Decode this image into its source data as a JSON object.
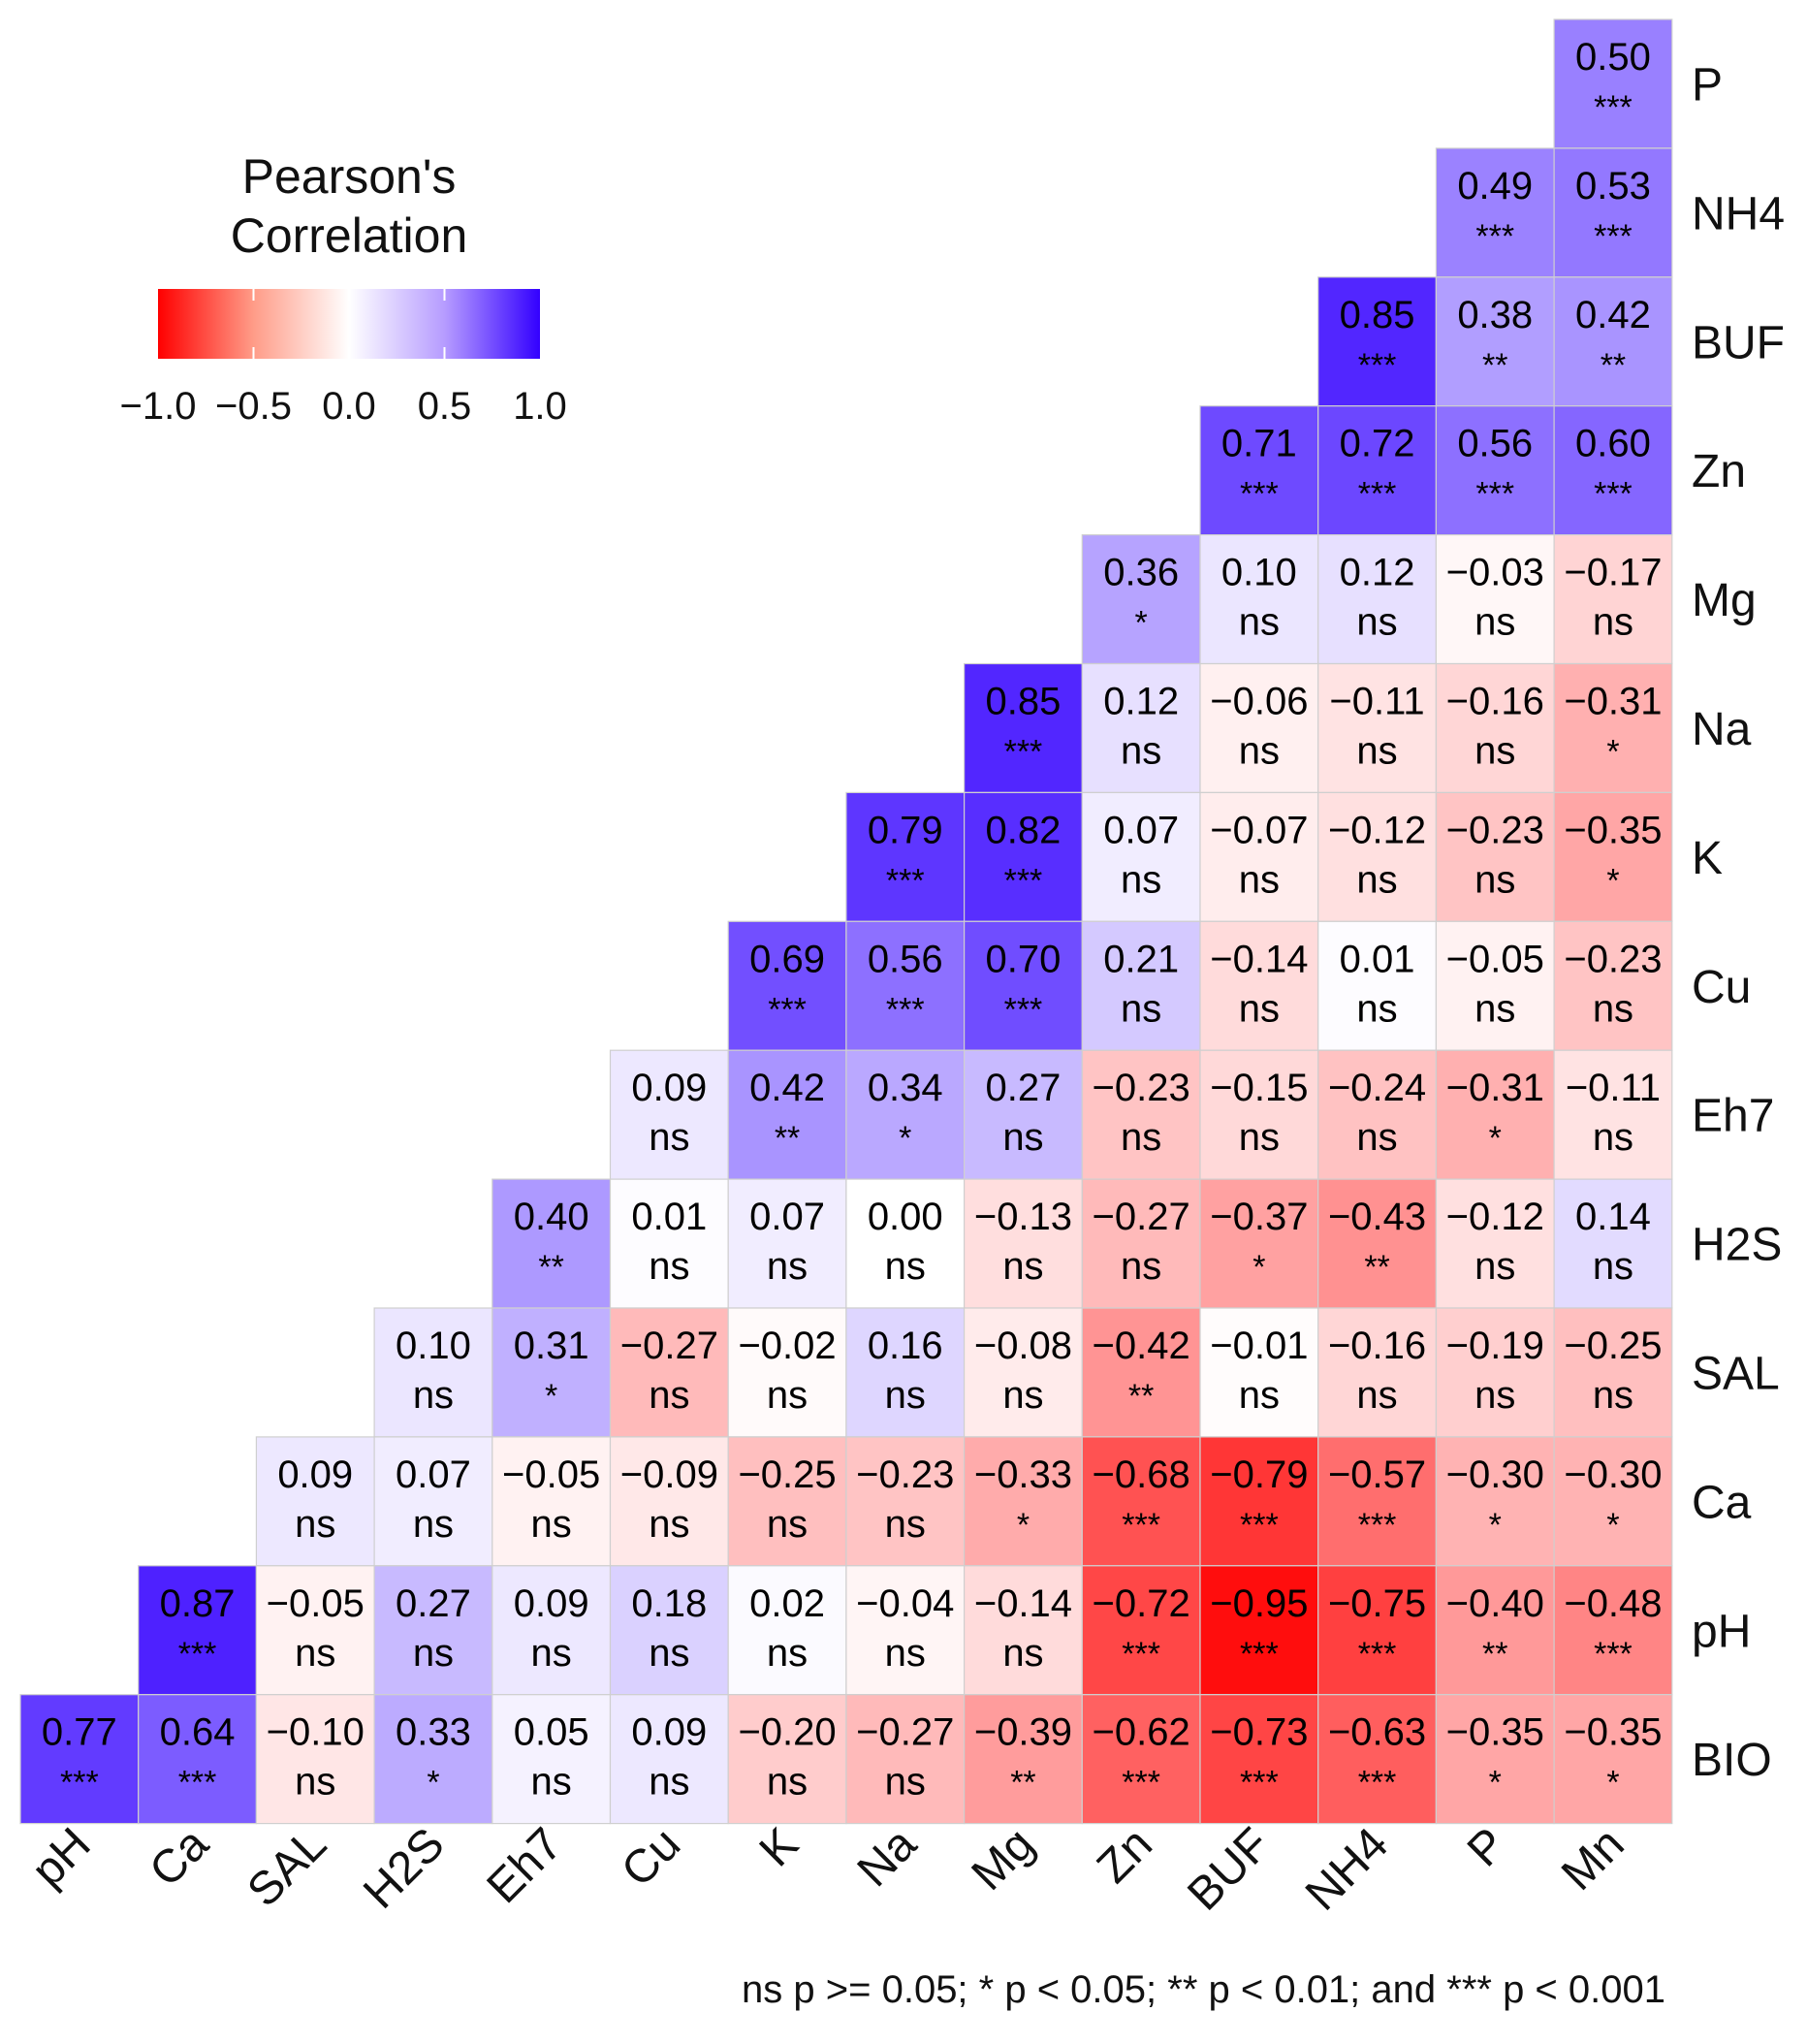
{
  "chart_data": {
    "type": "heatmap",
    "columns": [
      "pH",
      "Ca",
      "SAL",
      "H2S",
      "Eh7",
      "Cu",
      "K",
      "Na",
      "Mg",
      "Zn",
      "BUF",
      "NH4",
      "P",
      "Mn"
    ],
    "rows": [
      "P",
      "NH4",
      "BUF",
      "Zn",
      "Mg",
      "Na",
      "K",
      "Cu",
      "Eh7",
      "H2S",
      "SAL",
      "Ca",
      "pH",
      "BIO"
    ],
    "cells": [
      {
        "row": "P",
        "col": "Mn",
        "value": "0.50",
        "sig": "***"
      },
      {
        "row": "NH4",
        "col": "P",
        "value": "0.49",
        "sig": "***"
      },
      {
        "row": "NH4",
        "col": "Mn",
        "value": "0.53",
        "sig": "***"
      },
      {
        "row": "BUF",
        "col": "NH4",
        "value": "0.85",
        "sig": "***"
      },
      {
        "row": "BUF",
        "col": "P",
        "value": "0.38",
        "sig": "**"
      },
      {
        "row": "BUF",
        "col": "Mn",
        "value": "0.42",
        "sig": "**"
      },
      {
        "row": "Zn",
        "col": "BUF",
        "value": "0.71",
        "sig": "***"
      },
      {
        "row": "Zn",
        "col": "NH4",
        "value": "0.72",
        "sig": "***"
      },
      {
        "row": "Zn",
        "col": "P",
        "value": "0.56",
        "sig": "***"
      },
      {
        "row": "Zn",
        "col": "Mn",
        "value": "0.60",
        "sig": "***"
      },
      {
        "row": "Mg",
        "col": "Zn",
        "value": "0.36",
        "sig": "*"
      },
      {
        "row": "Mg",
        "col": "BUF",
        "value": "0.10",
        "sig": "ns"
      },
      {
        "row": "Mg",
        "col": "NH4",
        "value": "0.12",
        "sig": "ns"
      },
      {
        "row": "Mg",
        "col": "P",
        "value": "−0.03",
        "sig": "ns"
      },
      {
        "row": "Mg",
        "col": "Mn",
        "value": "−0.17",
        "sig": "ns"
      },
      {
        "row": "Na",
        "col": "Mg",
        "value": "0.85",
        "sig": "***"
      },
      {
        "row": "Na",
        "col": "Zn",
        "value": "0.12",
        "sig": "ns"
      },
      {
        "row": "Na",
        "col": "BUF",
        "value": "−0.06",
        "sig": "ns"
      },
      {
        "row": "Na",
        "col": "NH4",
        "value": "−0.11",
        "sig": "ns"
      },
      {
        "row": "Na",
        "col": "P",
        "value": "−0.16",
        "sig": "ns"
      },
      {
        "row": "Na",
        "col": "Mn",
        "value": "−0.31",
        "sig": "*"
      },
      {
        "row": "K",
        "col": "Na",
        "value": "0.79",
        "sig": "***"
      },
      {
        "row": "K",
        "col": "Mg",
        "value": "0.82",
        "sig": "***"
      },
      {
        "row": "K",
        "col": "Zn",
        "value": "0.07",
        "sig": "ns"
      },
      {
        "row": "K",
        "col": "BUF",
        "value": "−0.07",
        "sig": "ns"
      },
      {
        "row": "K",
        "col": "NH4",
        "value": "−0.12",
        "sig": "ns"
      },
      {
        "row": "K",
        "col": "P",
        "value": "−0.23",
        "sig": "ns"
      },
      {
        "row": "K",
        "col": "Mn",
        "value": "−0.35",
        "sig": "*"
      },
      {
        "row": "Cu",
        "col": "K",
        "value": "0.69",
        "sig": "***"
      },
      {
        "row": "Cu",
        "col": "Na",
        "value": "0.56",
        "sig": "***"
      },
      {
        "row": "Cu",
        "col": "Mg",
        "value": "0.70",
        "sig": "***"
      },
      {
        "row": "Cu",
        "col": "Zn",
        "value": "0.21",
        "sig": "ns"
      },
      {
        "row": "Cu",
        "col": "BUF",
        "value": "−0.14",
        "sig": "ns"
      },
      {
        "row": "Cu",
        "col": "NH4",
        "value": "0.01",
        "sig": "ns"
      },
      {
        "row": "Cu",
        "col": "P",
        "value": "−0.05",
        "sig": "ns"
      },
      {
        "row": "Cu",
        "col": "Mn",
        "value": "−0.23",
        "sig": "ns"
      },
      {
        "row": "Eh7",
        "col": "Cu",
        "value": "0.09",
        "sig": "ns"
      },
      {
        "row": "Eh7",
        "col": "K",
        "value": "0.42",
        "sig": "**"
      },
      {
        "row": "Eh7",
        "col": "Na",
        "value": "0.34",
        "sig": "*"
      },
      {
        "row": "Eh7",
        "col": "Mg",
        "value": "0.27",
        "sig": "ns"
      },
      {
        "row": "Eh7",
        "col": "Zn",
        "value": "−0.23",
        "sig": "ns"
      },
      {
        "row": "Eh7",
        "col": "BUF",
        "value": "−0.15",
        "sig": "ns"
      },
      {
        "row": "Eh7",
        "col": "NH4",
        "value": "−0.24",
        "sig": "ns"
      },
      {
        "row": "Eh7",
        "col": "P",
        "value": "−0.31",
        "sig": "*"
      },
      {
        "row": "Eh7",
        "col": "Mn",
        "value": "−0.11",
        "sig": "ns"
      },
      {
        "row": "H2S",
        "col": "Eh7",
        "value": "0.40",
        "sig": "**"
      },
      {
        "row": "H2S",
        "col": "Cu",
        "value": "0.01",
        "sig": "ns"
      },
      {
        "row": "H2S",
        "col": "K",
        "value": "0.07",
        "sig": "ns"
      },
      {
        "row": "H2S",
        "col": "Na",
        "value": "0.00",
        "sig": "ns"
      },
      {
        "row": "H2S",
        "col": "Mg",
        "value": "−0.13",
        "sig": "ns"
      },
      {
        "row": "H2S",
        "col": "Zn",
        "value": "−0.27",
        "sig": "ns"
      },
      {
        "row": "H2S",
        "col": "BUF",
        "value": "−0.37",
        "sig": "*"
      },
      {
        "row": "H2S",
        "col": "NH4",
        "value": "−0.43",
        "sig": "**"
      },
      {
        "row": "H2S",
        "col": "P",
        "value": "−0.12",
        "sig": "ns"
      },
      {
        "row": "H2S",
        "col": "Mn",
        "value": "0.14",
        "sig": "ns"
      },
      {
        "row": "SAL",
        "col": "H2S",
        "value": "0.10",
        "sig": "ns"
      },
      {
        "row": "SAL",
        "col": "Eh7",
        "value": "0.31",
        "sig": "*"
      },
      {
        "row": "SAL",
        "col": "Cu",
        "value": "−0.27",
        "sig": "ns"
      },
      {
        "row": "SAL",
        "col": "K",
        "value": "−0.02",
        "sig": "ns"
      },
      {
        "row": "SAL",
        "col": "Na",
        "value": "0.16",
        "sig": "ns"
      },
      {
        "row": "SAL",
        "col": "Mg",
        "value": "−0.08",
        "sig": "ns"
      },
      {
        "row": "SAL",
        "col": "Zn",
        "value": "−0.42",
        "sig": "**"
      },
      {
        "row": "SAL",
        "col": "BUF",
        "value": "−0.01",
        "sig": "ns"
      },
      {
        "row": "SAL",
        "col": "NH4",
        "value": "−0.16",
        "sig": "ns"
      },
      {
        "row": "SAL",
        "col": "P",
        "value": "−0.19",
        "sig": "ns"
      },
      {
        "row": "SAL",
        "col": "Mn",
        "value": "−0.25",
        "sig": "ns"
      },
      {
        "row": "Ca",
        "col": "SAL",
        "value": "0.09",
        "sig": "ns"
      },
      {
        "row": "Ca",
        "col": "H2S",
        "value": "0.07",
        "sig": "ns"
      },
      {
        "row": "Ca",
        "col": "Eh7",
        "value": "−0.05",
        "sig": "ns"
      },
      {
        "row": "Ca",
        "col": "Cu",
        "value": "−0.09",
        "sig": "ns"
      },
      {
        "row": "Ca",
        "col": "K",
        "value": "−0.25",
        "sig": "ns"
      },
      {
        "row": "Ca",
        "col": "Na",
        "value": "−0.23",
        "sig": "ns"
      },
      {
        "row": "Ca",
        "col": "Mg",
        "value": "−0.33",
        "sig": "*"
      },
      {
        "row": "Ca",
        "col": "Zn",
        "value": "−0.68",
        "sig": "***"
      },
      {
        "row": "Ca",
        "col": "BUF",
        "value": "−0.79",
        "sig": "***"
      },
      {
        "row": "Ca",
        "col": "NH4",
        "value": "−0.57",
        "sig": "***"
      },
      {
        "row": "Ca",
        "col": "P",
        "value": "−0.30",
        "sig": "*"
      },
      {
        "row": "Ca",
        "col": "Mn",
        "value": "−0.30",
        "sig": "*"
      },
      {
        "row": "pH",
        "col": "Ca",
        "value": "0.87",
        "sig": "***"
      },
      {
        "row": "pH",
        "col": "SAL",
        "value": "−0.05",
        "sig": "ns"
      },
      {
        "row": "pH",
        "col": "H2S",
        "value": "0.27",
        "sig": "ns"
      },
      {
        "row": "pH",
        "col": "Eh7",
        "value": "0.09",
        "sig": "ns"
      },
      {
        "row": "pH",
        "col": "Cu",
        "value": "0.18",
        "sig": "ns"
      },
      {
        "row": "pH",
        "col": "K",
        "value": "0.02",
        "sig": "ns"
      },
      {
        "row": "pH",
        "col": "Na",
        "value": "−0.04",
        "sig": "ns"
      },
      {
        "row": "pH",
        "col": "Mg",
        "value": "−0.14",
        "sig": "ns"
      },
      {
        "row": "pH",
        "col": "Zn",
        "value": "−0.72",
        "sig": "***"
      },
      {
        "row": "pH",
        "col": "BUF",
        "value": "−0.95",
        "sig": "***"
      },
      {
        "row": "pH",
        "col": "NH4",
        "value": "−0.75",
        "sig": "***"
      },
      {
        "row": "pH",
        "col": "P",
        "value": "−0.40",
        "sig": "**"
      },
      {
        "row": "pH",
        "col": "Mn",
        "value": "−0.48",
        "sig": "***"
      },
      {
        "row": "BIO",
        "col": "pH",
        "value": "0.77",
        "sig": "***"
      },
      {
        "row": "BIO",
        "col": "Ca",
        "value": "0.64",
        "sig": "***"
      },
      {
        "row": "BIO",
        "col": "SAL",
        "value": "−0.10",
        "sig": "ns"
      },
      {
        "row": "BIO",
        "col": "H2S",
        "value": "0.33",
        "sig": "*"
      },
      {
        "row": "BIO",
        "col": "Eh7",
        "value": "0.05",
        "sig": "ns"
      },
      {
        "row": "BIO",
        "col": "Cu",
        "value": "0.09",
        "sig": "ns"
      },
      {
        "row": "BIO",
        "col": "K",
        "value": "−0.20",
        "sig": "ns"
      },
      {
        "row": "BIO",
        "col": "Na",
        "value": "−0.27",
        "sig": "ns"
      },
      {
        "row": "BIO",
        "col": "Mg",
        "value": "−0.39",
        "sig": "**"
      },
      {
        "row": "BIO",
        "col": "Zn",
        "value": "−0.62",
        "sig": "***"
      },
      {
        "row": "BIO",
        "col": "BUF",
        "value": "−0.73",
        "sig": "***"
      },
      {
        "row": "BIO",
        "col": "NH4",
        "value": "−0.63",
        "sig": "***"
      },
      {
        "row": "BIO",
        "col": "P",
        "value": "−0.35",
        "sig": "*"
      },
      {
        "row": "BIO",
        "col": "Mn",
        "value": "−0.35",
        "sig": "*"
      }
    ],
    "legend": {
      "title_line1": "Pearson's",
      "title_line2": "Correlation",
      "ticks": [
        "−1.0",
        "−0.5",
        "0.0",
        "0.5",
        "1.0"
      ],
      "tick_values": [
        -1,
        -0.5,
        0,
        0.5,
        1
      ],
      "placement": "top-left",
      "color_low": "#FF0000",
      "color_mid": "#FFFFFF",
      "color_high": "#3300FF"
    },
    "footnote": "ns p >= 0.05; * p < 0.05; ** p < 0.01; and *** p < 0.001",
    "scale": [
      -1,
      1
    ]
  }
}
